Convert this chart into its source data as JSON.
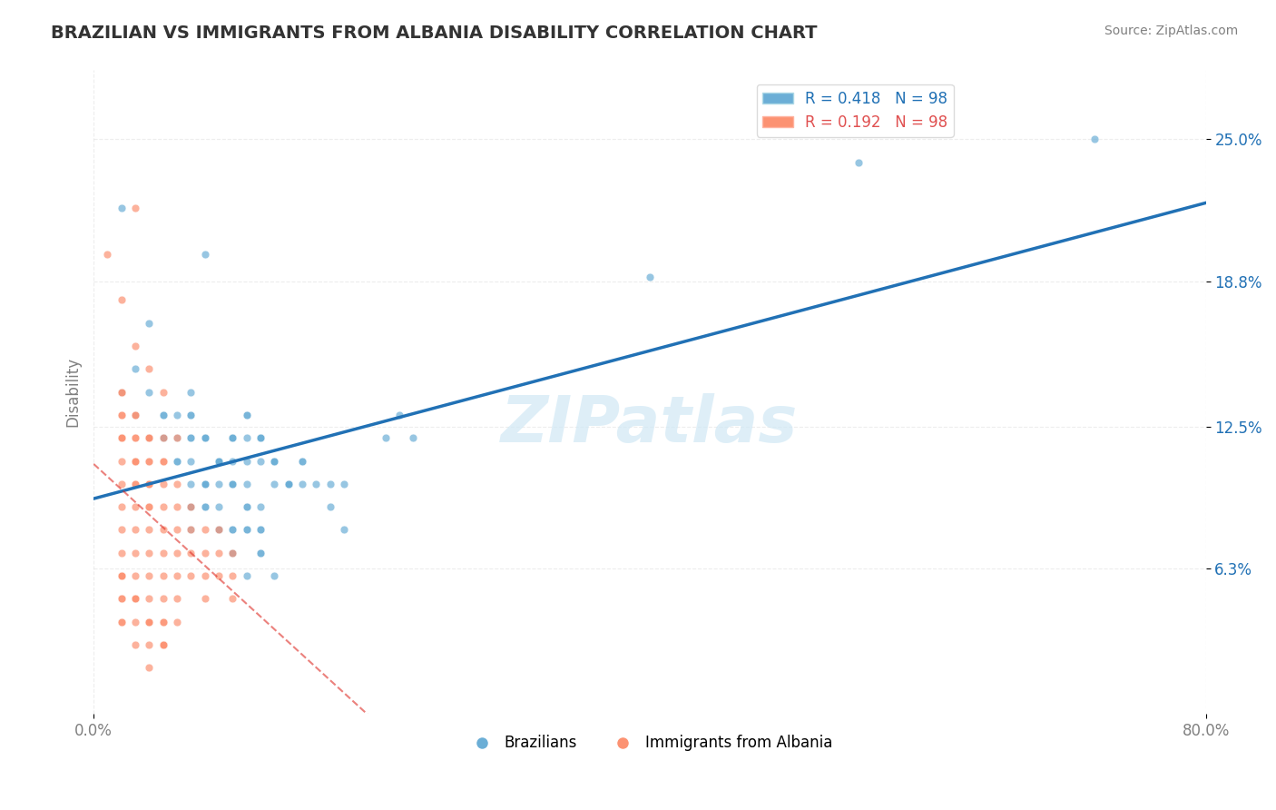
{
  "title": "BRAZILIAN VS IMMIGRANTS FROM ALBANIA DISABILITY CORRELATION CHART",
  "source_text": "Source: ZipAtlas.com",
  "xlabel": "",
  "ylabel": "Disability",
  "xlim": [
    0.0,
    0.8
  ],
  "ylim": [
    0.0,
    0.28
  ],
  "xtick_labels": [
    "0.0%",
    "80.0%"
  ],
  "ytick_values": [
    0.063,
    0.125,
    0.188,
    0.25
  ],
  "ytick_labels": [
    "6.3%",
    "12.5%",
    "18.8%",
    "25.0%"
  ],
  "legend_blue_r": "R = 0.418",
  "legend_blue_n": "N = 98",
  "legend_pink_r": "R = 0.192",
  "legend_pink_n": "N = 98",
  "blue_color": "#6baed6",
  "pink_color": "#fc9272",
  "regression_line_color": "#2171b5",
  "reference_line_color": "#de2d26",
  "watermark_text": "ZIPatlas",
  "background_color": "#ffffff",
  "blue_scatter": {
    "x": [
      0.02,
      0.04,
      0.08,
      0.1,
      0.07,
      0.05,
      0.06,
      0.04,
      0.03,
      0.05,
      0.06,
      0.07,
      0.08,
      0.09,
      0.1,
      0.11,
      0.12,
      0.06,
      0.05,
      0.04,
      0.03,
      0.02,
      0.04,
      0.05,
      0.06,
      0.07,
      0.08,
      0.09,
      0.1,
      0.11,
      0.12,
      0.13,
      0.14,
      0.15,
      0.07,
      0.08,
      0.09,
      0.1,
      0.11,
      0.12,
      0.13,
      0.14,
      0.15,
      0.16,
      0.17,
      0.18,
      0.07,
      0.08,
      0.09,
      0.1,
      0.11,
      0.12,
      0.13,
      0.14,
      0.15,
      0.21,
      0.22,
      0.23,
      0.07,
      0.08,
      0.09,
      0.1,
      0.11,
      0.12,
      0.13,
      0.14,
      0.07,
      0.08,
      0.09,
      0.1,
      0.11,
      0.12,
      0.07,
      0.08,
      0.09,
      0.1,
      0.11,
      0.12,
      0.07,
      0.08,
      0.09,
      0.1,
      0.11,
      0.12,
      0.07,
      0.08,
      0.09,
      0.1,
      0.11,
      0.17,
      0.18,
      0.1,
      0.11,
      0.12,
      0.13,
      0.4,
      0.55,
      0.72
    ],
    "y": [
      0.22,
      0.17,
      0.2,
      0.12,
      0.14,
      0.12,
      0.13,
      0.14,
      0.15,
      0.12,
      0.11,
      0.13,
      0.12,
      0.1,
      0.11,
      0.1,
      0.09,
      0.12,
      0.13,
      0.12,
      0.13,
      0.14,
      0.12,
      0.13,
      0.11,
      0.12,
      0.1,
      0.11,
      0.1,
      0.12,
      0.11,
      0.1,
      0.1,
      0.11,
      0.12,
      0.12,
      0.11,
      0.1,
      0.11,
      0.12,
      0.11,
      0.1,
      0.11,
      0.1,
      0.1,
      0.1,
      0.13,
      0.12,
      0.11,
      0.12,
      0.13,
      0.12,
      0.11,
      0.1,
      0.1,
      0.12,
      0.13,
      0.12,
      0.11,
      0.1,
      0.11,
      0.12,
      0.13,
      0.12,
      0.11,
      0.1,
      0.09,
      0.1,
      0.11,
      0.1,
      0.09,
      0.08,
      0.09,
      0.1,
      0.09,
      0.08,
      0.09,
      0.08,
      0.08,
      0.09,
      0.08,
      0.07,
      0.08,
      0.07,
      0.1,
      0.09,
      0.08,
      0.07,
      0.08,
      0.09,
      0.08,
      0.08,
      0.06,
      0.07,
      0.06,
      0.19,
      0.24,
      0.25
    ]
  },
  "pink_scatter": {
    "x": [
      0.01,
      0.02,
      0.03,
      0.04,
      0.05,
      0.02,
      0.03,
      0.04,
      0.05,
      0.06,
      0.02,
      0.03,
      0.04,
      0.05,
      0.02,
      0.03,
      0.04,
      0.05,
      0.02,
      0.03,
      0.04,
      0.05,
      0.02,
      0.03,
      0.04,
      0.02,
      0.03,
      0.04,
      0.02,
      0.03,
      0.04,
      0.02,
      0.03,
      0.04,
      0.02,
      0.03,
      0.04,
      0.05,
      0.06,
      0.07,
      0.08,
      0.02,
      0.03,
      0.04,
      0.05,
      0.06,
      0.07,
      0.08,
      0.09,
      0.1,
      0.02,
      0.03,
      0.04,
      0.05,
      0.06,
      0.07,
      0.08,
      0.09,
      0.1,
      0.02,
      0.03,
      0.04,
      0.05,
      0.06,
      0.07,
      0.08,
      0.09,
      0.1,
      0.02,
      0.03,
      0.04,
      0.05,
      0.06,
      0.02,
      0.03,
      0.04,
      0.05,
      0.06,
      0.02,
      0.03,
      0.04,
      0.05,
      0.06,
      0.02,
      0.03,
      0.04,
      0.05,
      0.02,
      0.03,
      0.04,
      0.05,
      0.02,
      0.03,
      0.04,
      0.05,
      0.02,
      0.03,
      0.04
    ],
    "y": [
      0.2,
      0.18,
      0.22,
      0.12,
      0.1,
      0.14,
      0.16,
      0.15,
      0.14,
      0.12,
      0.13,
      0.12,
      0.11,
      0.12,
      0.14,
      0.13,
      0.12,
      0.11,
      0.12,
      0.13,
      0.12,
      0.11,
      0.12,
      0.11,
      0.1,
      0.13,
      0.12,
      0.11,
      0.11,
      0.1,
      0.09,
      0.1,
      0.11,
      0.1,
      0.12,
      0.11,
      0.1,
      0.09,
      0.1,
      0.09,
      0.08,
      0.09,
      0.1,
      0.09,
      0.08,
      0.09,
      0.08,
      0.07,
      0.08,
      0.07,
      0.08,
      0.09,
      0.08,
      0.07,
      0.08,
      0.07,
      0.06,
      0.07,
      0.06,
      0.07,
      0.08,
      0.07,
      0.06,
      0.07,
      0.06,
      0.05,
      0.06,
      0.05,
      0.06,
      0.07,
      0.06,
      0.05,
      0.06,
      0.05,
      0.06,
      0.05,
      0.04,
      0.05,
      0.04,
      0.05,
      0.04,
      0.03,
      0.04,
      0.06,
      0.05,
      0.04,
      0.03,
      0.04,
      0.03,
      0.02,
      0.03,
      0.05,
      0.04,
      0.03,
      0.04,
      0.06,
      0.05,
      0.04
    ]
  }
}
